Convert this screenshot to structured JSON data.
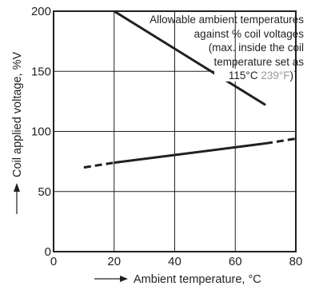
{
  "chart_data": {
    "type": "line",
    "xlabel": "Ambient temperature, °C",
    "ylabel": "Coil applied voltage, %V",
    "xlim": [
      0,
      80
    ],
    "ylim": [
      0,
      200
    ],
    "x_ticks": [
      "0",
      "20",
      "40",
      "60",
      "80"
    ],
    "y_ticks": [
      "0",
      "50",
      "100",
      "150",
      "200"
    ],
    "grid": true,
    "annotation": {
      "lines": [
        "Allowable ambient temperatures",
        "against % coil voltages",
        "(max. inside the coil",
        "temperature set as"
      ],
      "last_line_prefix": "115°C ",
      "last_line_gray": "239°F",
      "last_line_suffix": ")"
    },
    "series": [
      {
        "style": "solid",
        "x": [
          20,
          70
        ],
        "y": [
          200,
          122
        ]
      },
      {
        "style": "dashed",
        "x": [
          10,
          20
        ],
        "y": [
          70,
          74
        ]
      },
      {
        "style": "solid",
        "x": [
          20,
          70
        ],
        "y": [
          74,
          90
        ]
      },
      {
        "style": "dashed",
        "x": [
          70,
          80
        ],
        "y": [
          90,
          94
        ]
      }
    ]
  }
}
